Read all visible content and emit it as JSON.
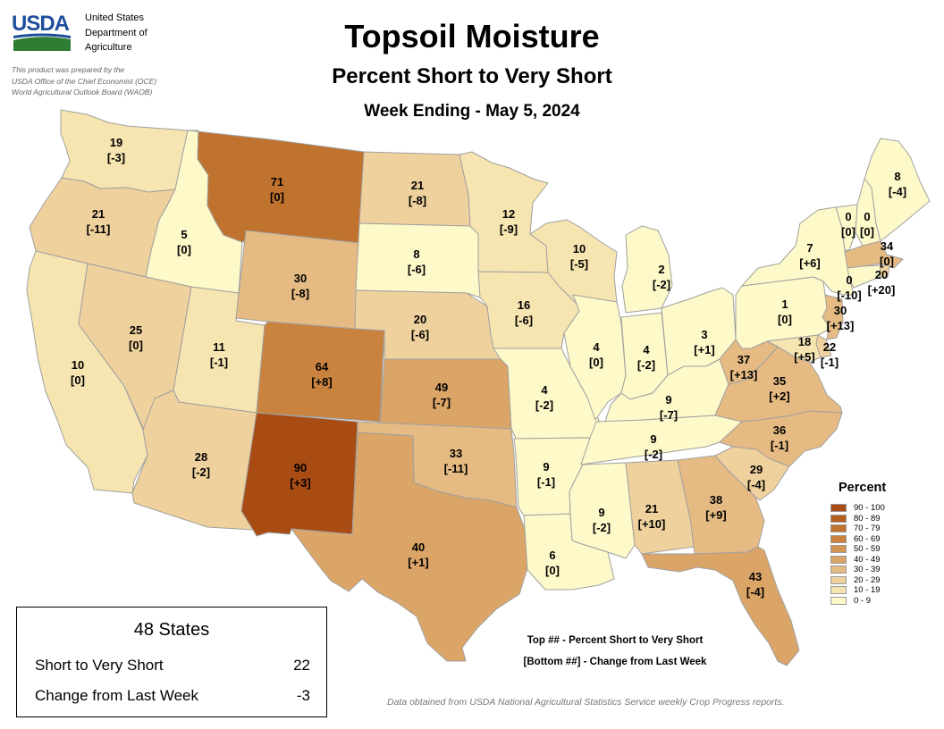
{
  "header": {
    "agency_line1": "United States",
    "agency_line2": "Department of",
    "agency_line3": "Agriculture",
    "logo_text": "USDA",
    "credit_line1": "This product was prepared by the",
    "credit_line2": "USDA Office of the Chief Economist (OCE)",
    "credit_line3": "World Agricultural Outlook Board (WAOB)",
    "title": "Topsoil Moisture",
    "subtitle": "Percent Short to Very Short",
    "week": "Week Ending - May 5, 2024"
  },
  "colors": {
    "brand_blue": "#1f4e9c",
    "brand_green": "#2e7d32",
    "state_border": "#a0a0a0"
  },
  "map": {
    "states": [
      {
        "abbr": "WA",
        "value": "19",
        "change": "[-3]"
      },
      {
        "abbr": "OR",
        "value": "21",
        "change": "[-11]"
      },
      {
        "abbr": "CA",
        "value": "10",
        "change": "[0]"
      },
      {
        "abbr": "ID",
        "value": "5",
        "change": "[0]"
      },
      {
        "abbr": "NV",
        "value": "25",
        "change": "[0]"
      },
      {
        "abbr": "UT",
        "value": "11",
        "change": "[-1]"
      },
      {
        "abbr": "AZ",
        "value": "28",
        "change": "[-2]"
      },
      {
        "abbr": "MT",
        "value": "71",
        "change": "[0]"
      },
      {
        "abbr": "WY",
        "value": "30",
        "change": "[-8]"
      },
      {
        "abbr": "CO",
        "value": "64",
        "change": "[+8]"
      },
      {
        "abbr": "NM",
        "value": "90",
        "change": "[+3]"
      },
      {
        "abbr": "ND",
        "value": "21",
        "change": "[-8]"
      },
      {
        "abbr": "SD",
        "value": "8",
        "change": "[-6]"
      },
      {
        "abbr": "NE",
        "value": "20",
        "change": "[-6]"
      },
      {
        "abbr": "KS",
        "value": "49",
        "change": "[-7]"
      },
      {
        "abbr": "OK",
        "value": "33",
        "change": "[-11]"
      },
      {
        "abbr": "TX",
        "value": "40",
        "change": "[+1]"
      },
      {
        "abbr": "MN",
        "value": "12",
        "change": "[-9]"
      },
      {
        "abbr": "IA",
        "value": "16",
        "change": "[-6]"
      },
      {
        "abbr": "MO",
        "value": "4",
        "change": "[-2]"
      },
      {
        "abbr": "AR",
        "value": "9",
        "change": "[-1]"
      },
      {
        "abbr": "LA",
        "value": "6",
        "change": "[0]"
      },
      {
        "abbr": "WI",
        "value": "10",
        "change": "[-5]"
      },
      {
        "abbr": "IL",
        "value": "4",
        "change": "[0]"
      },
      {
        "abbr": "MI",
        "value": "2",
        "change": "[-2]"
      },
      {
        "abbr": "IN",
        "value": "4",
        "change": "[-2]"
      },
      {
        "abbr": "OH",
        "value": "3",
        "change": "[+1]"
      },
      {
        "abbr": "KY",
        "value": "9",
        "change": "[-7]"
      },
      {
        "abbr": "TN",
        "value": "9",
        "change": "[-2]"
      },
      {
        "abbr": "MS",
        "value": "9",
        "change": "[-2]"
      },
      {
        "abbr": "AL",
        "value": "21",
        "change": "[+10]"
      },
      {
        "abbr": "GA",
        "value": "38",
        "change": "[+9]"
      },
      {
        "abbr": "FL",
        "value": "43",
        "change": "[-4]"
      },
      {
        "abbr": "SC",
        "value": "29",
        "change": "[-4]"
      },
      {
        "abbr": "NC",
        "value": "36",
        "change": "[-1]"
      },
      {
        "abbr": "VA",
        "value": "35",
        "change": "[+2]"
      },
      {
        "abbr": "WV",
        "value": "37",
        "change": "[+13]"
      },
      {
        "abbr": "PA",
        "value": "1",
        "change": "[0]"
      },
      {
        "abbr": "NY",
        "value": "7",
        "change": "[+6]"
      },
      {
        "abbr": "VT",
        "value": "0",
        "change": "[0]"
      },
      {
        "abbr": "NH",
        "value": "0",
        "change": "[0]"
      },
      {
        "abbr": "ME",
        "value": "8",
        "change": "[-4]"
      },
      {
        "abbr": "MA",
        "value": "34",
        "change": "[0]"
      },
      {
        "abbr": "RI",
        "value": "20",
        "change": "[+20]"
      },
      {
        "abbr": "CT",
        "value": "0",
        "change": "[-10]"
      },
      {
        "abbr": "NJ",
        "value": "30",
        "change": "[+13]"
      },
      {
        "abbr": "MD",
        "value": "18",
        "change": "[+5]"
      },
      {
        "abbr": "DE",
        "value": "22",
        "change": "[-1]"
      }
    ]
  },
  "legend": {
    "title": "Percent",
    "classes": [
      {
        "label": "90 - 100",
        "color": "#a84c14"
      },
      {
        "label": "80 - 89",
        "color": "#b55f22"
      },
      {
        "label": "70 - 79",
        "color": "#c0722f"
      },
      {
        "label": "60 - 69",
        "color": "#c9833f"
      },
      {
        "label": "50 - 59",
        "color": "#d29552"
      },
      {
        "label": "40 - 49",
        "color": "#dba567"
      },
      {
        "label": "30 - 39",
        "color": "#e6bb83"
      },
      {
        "label": "20 - 29",
        "color": "#efd19d"
      },
      {
        "label": "10 - 19",
        "color": "#f6e4b1"
      },
      {
        "label": "0 - 9",
        "color": "#fdf9c9"
      }
    ]
  },
  "summary": {
    "title": "48 States",
    "row1_label": "Short to Very Short",
    "row1_value": "22",
    "row2_label": "Change from Last Week",
    "row2_value": "-3"
  },
  "notes": {
    "top": "Top ## - Percent Short to Very Short",
    "bottom": "[Bottom ##] - Change from Last Week",
    "source": "Data obtained from USDA National Agricultural Statistics Service weekly Crop Progress reports."
  }
}
